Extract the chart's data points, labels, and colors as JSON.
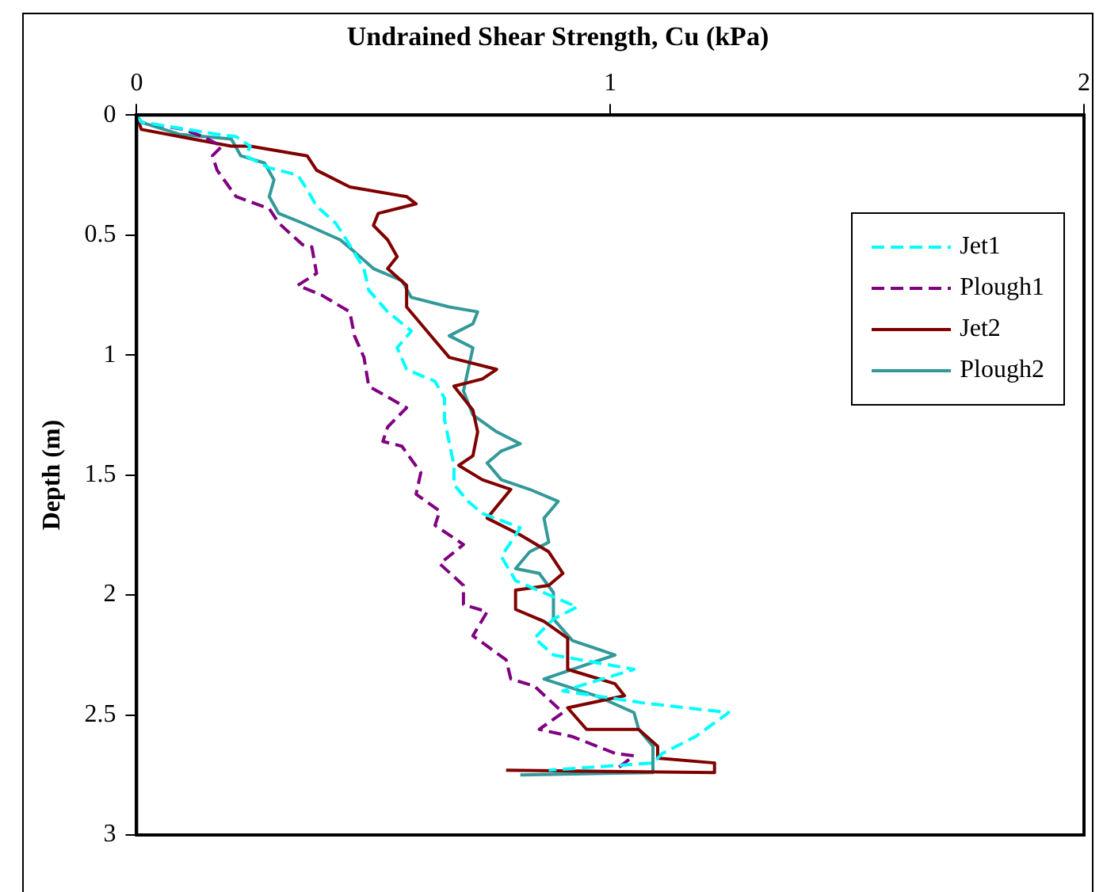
{
  "chart_data": {
    "type": "line",
    "title": "Undrained Shear Strength, Cu (kPa)",
    "ylabel": "Depth (m)",
    "xlim": [
      0,
      2
    ],
    "xticks": [
      0,
      1,
      2
    ],
    "ylim": [
      3,
      0
    ],
    "yticks": [
      0,
      0.5,
      1,
      1.5,
      2,
      2.5,
      3
    ],
    "grid": false,
    "legend": "top right",
    "series": [
      {
        "name": "Jet1",
        "color": "#00ffff",
        "line_style": "dashed",
        "x": [
          0,
          0.01,
          0.17,
          0.21,
          0.24,
          0.23,
          0.28,
          0.34,
          0.36,
          0.38,
          0.42,
          0.44,
          0.48,
          0.49,
          0.53,
          0.58,
          0.55,
          0.57,
          0.63,
          0.65,
          0.65,
          0.67,
          0.67,
          0.7,
          0.73,
          0.81,
          0.77,
          0.8,
          0.93,
          0.88,
          0.84,
          0.88,
          1.05,
          0.9,
          1.07,
          1.25,
          1.18,
          1.11,
          1.09,
          0.87
        ],
        "values": [
          0,
          0.03,
          0.08,
          0.09,
          0.13,
          0.17,
          0.22,
          0.25,
          0.31,
          0.38,
          0.45,
          0.51,
          0.64,
          0.73,
          0.82,
          0.9,
          0.97,
          1.06,
          1.11,
          1.18,
          1.27,
          1.46,
          1.54,
          1.61,
          1.66,
          1.72,
          1.84,
          1.94,
          2.05,
          2.1,
          2.18,
          2.25,
          2.31,
          2.4,
          2.45,
          2.49,
          2.59,
          2.66,
          2.7,
          2.73
        ]
      },
      {
        "name": "Plough1",
        "color": "#800080",
        "line_style": "dashed",
        "x": [
          0,
          0.01,
          0.1,
          0.14,
          0.18,
          0.16,
          0.17,
          0.21,
          0.28,
          0.3,
          0.35,
          0.37,
          0.38,
          0.34,
          0.39,
          0.45,
          0.46,
          0.48,
          0.49,
          0.57,
          0.53,
          0.52,
          0.56,
          0.6,
          0.59,
          0.64,
          0.63,
          0.69,
          0.64,
          0.69,
          0.69,
          0.74,
          0.71,
          0.78,
          0.79,
          0.84,
          0.9,
          0.85,
          0.92,
          1.01,
          1.05,
          1.01
        ],
        "values": [
          0,
          0.03,
          0.06,
          0.09,
          0.13,
          0.17,
          0.23,
          0.34,
          0.39,
          0.45,
          0.54,
          0.55,
          0.66,
          0.71,
          0.75,
          0.82,
          0.92,
          1.01,
          1.13,
          1.22,
          1.3,
          1.36,
          1.38,
          1.49,
          1.58,
          1.65,
          1.71,
          1.79,
          1.87,
          1.96,
          2.04,
          2.07,
          2.17,
          2.27,
          2.35,
          2.38,
          2.49,
          2.56,
          2.59,
          2.66,
          2.67,
          2.73
        ]
      },
      {
        "name": "Jet2",
        "color": "#800000",
        "line_style": "solid",
        "x": [
          0,
          0.01,
          0.2,
          0.24,
          0.36,
          0.38,
          0.45,
          0.57,
          0.59,
          0.51,
          0.5,
          0.53,
          0.55,
          0.53,
          0.57,
          0.57,
          0.63,
          0.66,
          0.76,
          0.73,
          0.67,
          0.71,
          0.72,
          0.71,
          0.68,
          0.73,
          0.79,
          0.74,
          0.81,
          0.87,
          0.9,
          0.87,
          0.8,
          0.8,
          0.86,
          0.91,
          0.91,
          1.01,
          1.03,
          0.91,
          0.95,
          1.06,
          1.1,
          1.1,
          1.22,
          1.22,
          0.78
        ],
        "values": [
          0,
          0.06,
          0.13,
          0.13,
          0.17,
          0.23,
          0.3,
          0.34,
          0.37,
          0.41,
          0.46,
          0.52,
          0.59,
          0.64,
          0.71,
          0.8,
          0.94,
          1.01,
          1.06,
          1.1,
          1.13,
          1.23,
          1.32,
          1.42,
          1.46,
          1.52,
          1.56,
          1.68,
          1.75,
          1.82,
          1.91,
          1.96,
          1.98,
          2.06,
          2.11,
          2.18,
          2.31,
          2.37,
          2.42,
          2.47,
          2.56,
          2.56,
          2.63,
          2.68,
          2.7,
          2.74,
          2.73
        ]
      },
      {
        "name": "Plough2",
        "color": "#339999",
        "line_style": "solid",
        "x": [
          0,
          0.01,
          0.09,
          0.2,
          0.22,
          0.27,
          0.29,
          0.28,
          0.3,
          0.35,
          0.43,
          0.46,
          0.5,
          0.56,
          0.58,
          0.66,
          0.72,
          0.71,
          0.66,
          0.71,
          0.7,
          0.69,
          0.71,
          0.76,
          0.81,
          0.77,
          0.74,
          0.77,
          0.83,
          0.89,
          0.86,
          0.87,
          0.83,
          0.8,
          0.85,
          0.88,
          0.88,
          0.92,
          1.01,
          0.86,
          0.97,
          1.05,
          1.06,
          1.09,
          1.09,
          0.81
        ],
        "values": [
          0,
          0.03,
          0.08,
          0.1,
          0.17,
          0.2,
          0.27,
          0.34,
          0.41,
          0.45,
          0.52,
          0.57,
          0.64,
          0.69,
          0.76,
          0.8,
          0.82,
          0.87,
          0.92,
          0.97,
          1.06,
          1.15,
          1.25,
          1.32,
          1.37,
          1.4,
          1.45,
          1.52,
          1.56,
          1.61,
          1.68,
          1.78,
          1.82,
          1.89,
          1.91,
          1.99,
          2.1,
          2.19,
          2.25,
          2.35,
          2.42,
          2.49,
          2.56,
          2.63,
          2.74,
          2.75
        ]
      }
    ]
  }
}
